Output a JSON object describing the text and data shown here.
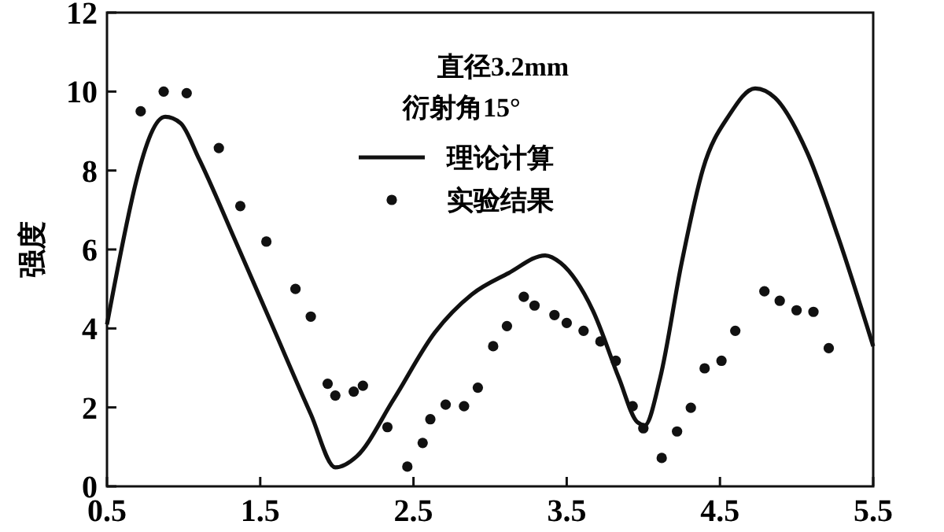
{
  "chart_data": {
    "type": "line",
    "ylabel": "强度",
    "annotations": [
      "直径3.2mm",
      "衍射角15°"
    ],
    "xlim": [
      0.5,
      5.5
    ],
    "xticks": [
      0.5,
      1.5,
      2.5,
      3.5,
      4.5,
      5.5
    ],
    "ylim": [
      0,
      12
    ],
    "yticks": [
      0,
      2,
      4,
      6,
      8,
      10,
      12
    ],
    "legend": "top",
    "grid": false,
    "series": [
      {
        "name": "理论计算",
        "color": "#111111",
        "marker": "none",
        "line_style": "solid",
        "x": [
          0.5,
          0.88,
          0.98,
          1.1,
          1.34,
          1.58,
          1.83,
          1.99,
          2.13,
          2.37,
          2.64,
          2.88,
          3.12,
          3.36,
          3.46,
          3.67,
          3.84,
          3.96,
          4.01,
          4.11,
          4.25,
          4.39,
          4.56,
          4.73,
          4.86,
          5.07,
          5.27,
          5.5
        ],
        "values": [
          4.1,
          9.36,
          9.2,
          8.3,
          6.2,
          4.06,
          1.83,
          0.48,
          0.76,
          2.2,
          3.9,
          4.86,
          5.4,
          5.85,
          5.66,
          4.46,
          2.75,
          1.63,
          1.55,
          2.75,
          5.66,
          8.05,
          9.4,
          10.08,
          9.84,
          8.45,
          6.33,
          3.55
        ]
      },
      {
        "name": "实验结果",
        "type": "scatter",
        "color": "#111111",
        "marker": "circle",
        "x": [
          0.72,
          0.87,
          1.02,
          1.23,
          1.37,
          1.54,
          1.73,
          1.83,
          1.94,
          1.99,
          2.11,
          2.17,
          2.33,
          2.46,
          2.56,
          2.61,
          2.71,
          2.83,
          2.92,
          3.02,
          3.11,
          3.22,
          3.29,
          3.42,
          3.5,
          3.61,
          3.72,
          3.82,
          3.93,
          4.0,
          4.12,
          4.22,
          4.31,
          4.4,
          4.51,
          4.6,
          4.79,
          4.89,
          5.0,
          5.11,
          5.21
        ],
        "values": [
          9.5,
          10.0,
          9.96,
          8.57,
          7.1,
          6.2,
          5.0,
          4.3,
          2.6,
          2.3,
          2.4,
          2.55,
          1.5,
          0.5,
          1.1,
          1.7,
          2.07,
          2.03,
          2.5,
          3.55,
          4.06,
          4.8,
          4.58,
          4.34,
          4.14,
          3.94,
          3.67,
          3.18,
          2.03,
          1.47,
          0.72,
          1.39,
          1.99,
          2.99,
          3.18,
          3.94,
          4.94,
          4.7,
          4.46,
          4.42,
          3.5
        ]
      }
    ]
  }
}
